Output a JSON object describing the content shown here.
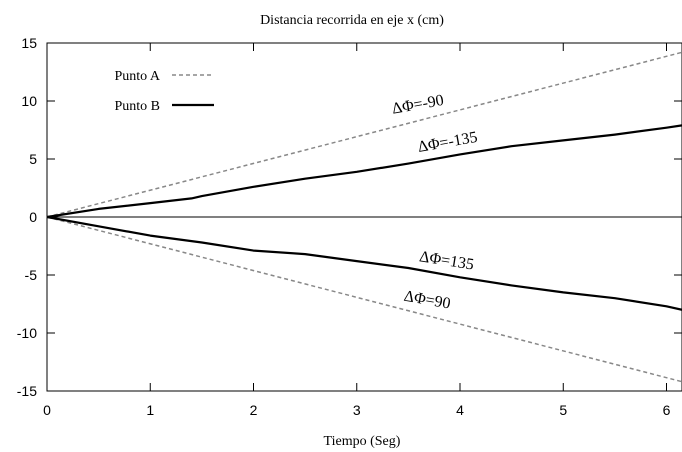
{
  "chart_data": {
    "type": "line",
    "title": "Distancia recorrida en eje x (cm)",
    "xlabel": "Tiempo (Seg)",
    "ylabel": "",
    "xlim": [
      0,
      6.15
    ],
    "ylim": [
      -15,
      15
    ],
    "x_ticks": [
      "0",
      "1",
      "2",
      "3",
      "4",
      "5",
      "6"
    ],
    "y_ticks": [
      "15",
      "10",
      "5",
      "0",
      "-5",
      "-10",
      "-15"
    ],
    "grid": false,
    "legend_position": "top-left",
    "legend": [
      {
        "label": "Punto A",
        "style": "dashed",
        "color": "#888888"
      },
      {
        "label": "Punto B",
        "style": "solid",
        "color": "#000000"
      }
    ],
    "series": [
      {
        "name": "Punto A",
        "style": "dashed",
        "color": "#888888",
        "x": [
          0,
          6.15
        ],
        "y": [
          0,
          14.2
        ]
      },
      {
        "name": "Punto B",
        "style": "solid",
        "color": "#000000",
        "x": [
          0,
          0.5,
          1.0,
          1.4,
          1.5,
          2.0,
          2.5,
          3.0,
          3.5,
          4.0,
          4.5,
          5.0,
          5.5,
          6.0,
          6.15
        ],
        "y": [
          0,
          0.7,
          1.2,
          1.6,
          1.8,
          2.6,
          3.3,
          3.9,
          4.6,
          5.4,
          6.1,
          6.6,
          7.1,
          7.7,
          7.9
        ]
      },
      {
        "name": "Punto A",
        "style": "dashed",
        "color": "#888888",
        "x": [
          0,
          6.15
        ],
        "y": [
          0,
          -14.2
        ]
      },
      {
        "name": "Punto B",
        "style": "solid",
        "color": "#000000",
        "x": [
          0,
          0.5,
          1.0,
          1.5,
          2.0,
          2.5,
          3.0,
          3.5,
          4.0,
          4.5,
          5.0,
          5.5,
          6.0,
          6.15
        ],
        "y": [
          0,
          -0.8,
          -1.6,
          -2.2,
          -2.9,
          -3.2,
          -3.8,
          -4.4,
          -5.2,
          -5.9,
          -6.5,
          -7.0,
          -7.7,
          -8.0
        ]
      }
    ],
    "annotations": [
      {
        "text": "ΔΦ=-90",
        "x": 3.35,
        "y": 8.9,
        "rotate": -10
      },
      {
        "text": "ΔΦ=-135",
        "x": 3.6,
        "y": 5.6,
        "rotate": -10
      },
      {
        "text": "ΔΦ=135",
        "x": 3.6,
        "y": -3.8,
        "rotate": 9
      },
      {
        "text": "ΔΦ=90",
        "x": 3.45,
        "y": -7.2,
        "rotate": 10
      }
    ]
  }
}
